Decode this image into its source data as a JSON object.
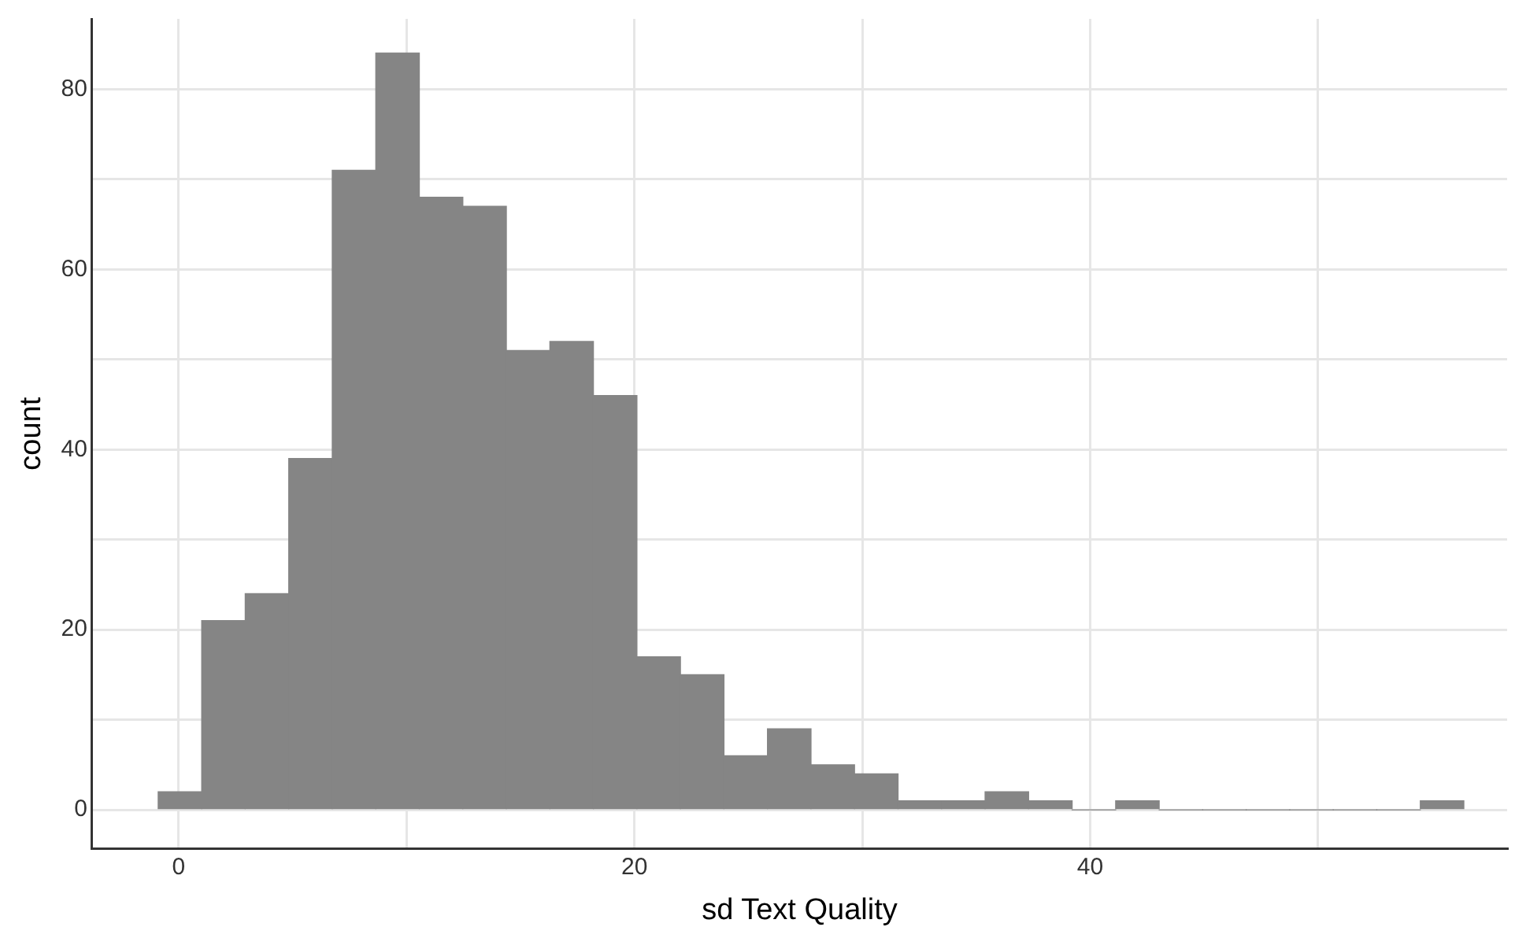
{
  "chart_data": {
    "type": "histogram",
    "xlabel": "sd Text Quality",
    "ylabel": "count",
    "bins": [
      -0.9,
      1.01,
      2.92,
      4.83,
      6.74,
      8.65,
      10.56,
      12.47,
      14.38,
      16.29,
      18.2,
      20.11,
      22.02,
      23.93,
      25.84,
      27.75,
      29.66,
      31.57,
      33.48,
      35.39,
      37.3,
      39.21,
      41.12,
      43.03,
      44.94,
      46.85,
      48.76,
      50.67,
      52.58,
      54.49,
      56.4
    ],
    "values": [
      2,
      21,
      24,
      39,
      71,
      84,
      68,
      67,
      51,
      52,
      46,
      17,
      15,
      6,
      9,
      5,
      4,
      1,
      1,
      2,
      1,
      0,
      1,
      0,
      0,
      0,
      0,
      0,
      0,
      1
    ],
    "color": "#858585",
    "xlim": [
      -3.8,
      58.3
    ],
    "xticks": [
      0,
      {
        "value": 10,
        "label": null
      },
      20,
      {
        "value": 30,
        "label": null
      },
      40,
      {
        "value": 50,
        "label": null
      }
    ],
    "ylim": [
      -4.3,
      87.8
    ],
    "yticks": [
      0,
      {
        "value": 10,
        "label": null
      },
      20,
      {
        "value": 30,
        "label": null
      },
      40,
      {
        "value": 50,
        "label": null
      },
      60,
      {
        "value": 70,
        "label": null
      },
      80
    ],
    "grid": true
  }
}
